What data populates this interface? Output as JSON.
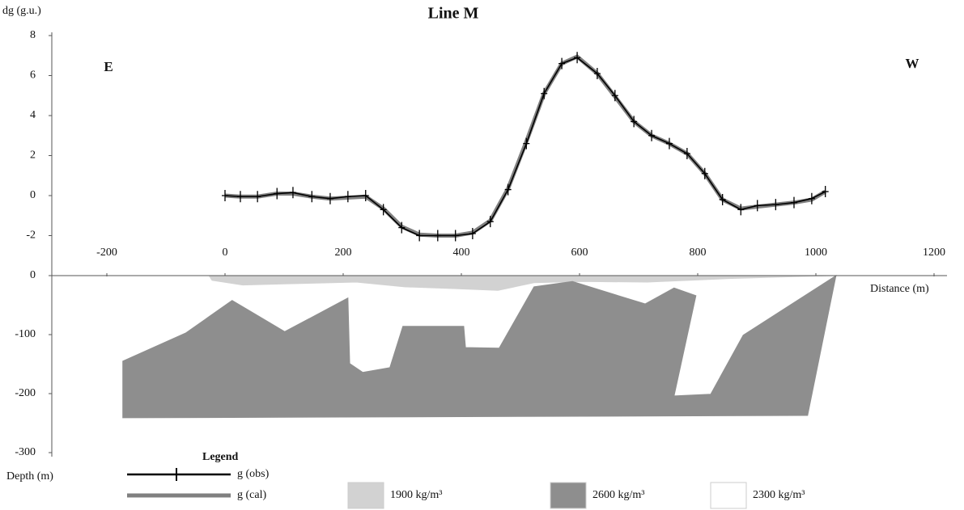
{
  "chart_data": [
    {
      "type": "line",
      "title": "Line M",
      "y_label": "dg (g.u.)",
      "x_label": "Distance (m)",
      "annotations": [
        "E",
        "W"
      ],
      "xlim": [
        -300,
        1200
      ],
      "xticks": [
        -200,
        0,
        200,
        400,
        600,
        800,
        1000,
        1200
      ],
      "ylim": [
        -2,
        8
      ],
      "yticks": [
        -2,
        0,
        2,
        4,
        6,
        8
      ],
      "legend_title": "Legend",
      "series": [
        {
          "name": "g (cal)",
          "color": "#808080",
          "x": [
            0,
            26,
            55,
            88,
            115,
            147,
            178,
            208,
            238,
            268,
            299,
            329,
            360,
            390,
            419,
            449,
            479,
            510,
            540,
            570,
            596,
            630,
            660,
            692,
            722,
            752,
            782,
            812,
            842,
            873,
            901,
            932,
            963,
            993,
            1016
          ],
          "values": [
            0,
            -0.05,
            -0.05,
            0.1,
            0.1,
            -0.05,
            -0.15,
            -0.1,
            -0.05,
            -0.65,
            -1.55,
            -1.95,
            -2.0,
            -2.0,
            -1.85,
            -1.25,
            0.35,
            2.7,
            5.1,
            6.6,
            6.95,
            6.1,
            4.95,
            3.7,
            3.0,
            2.6,
            2.1,
            1.1,
            -0.2,
            -0.65,
            -0.55,
            -0.45,
            -0.35,
            -0.2,
            0.2
          ]
        },
        {
          "name": "g (obs)",
          "color": "#000000",
          "x": [
            0,
            26,
            55,
            88,
            115,
            147,
            178,
            208,
            238,
            268,
            299,
            329,
            360,
            390,
            419,
            449,
            479,
            510,
            540,
            570,
            596,
            630,
            660,
            692,
            722,
            752,
            782,
            812,
            842,
            873,
            901,
            932,
            963,
            993,
            1016
          ],
          "values": [
            0,
            -0.05,
            -0.05,
            0.1,
            0.15,
            -0.05,
            -0.15,
            -0.05,
            0,
            -0.7,
            -1.6,
            -2.0,
            -2.0,
            -2.0,
            -1.9,
            -1.3,
            0.3,
            2.6,
            5.1,
            6.6,
            6.9,
            6.1,
            5.0,
            3.7,
            3.0,
            2.6,
            2.1,
            1.1,
            -0.2,
            -0.7,
            -0.5,
            -0.45,
            -0.35,
            -0.15,
            0.2
          ]
        }
      ]
    },
    {
      "type": "area",
      "y_label": "Depth (m)",
      "xlim": [
        -300,
        1200
      ],
      "ylim": [
        -300,
        0
      ],
      "yticks": [
        -300,
        -200,
        -100,
        0
      ],
      "series": [
        {
          "name": "1900 kg/m³",
          "color": "#d2d2d2",
          "x": [
            -27,
            1030,
            989,
            852,
            715,
            605,
            523,
            462,
            386,
            304,
            222,
            99,
            30,
            -22
          ],
          "values": [
            0,
            0,
            -1,
            -5,
            -11,
            -10,
            -12,
            -25,
            -22,
            -19,
            -11,
            -14,
            -16,
            -8
          ]
        },
        {
          "name": "2600 kg/m³",
          "color": "#8e8e8e",
          "x": [
            -173,
            -66,
            12,
            101,
            208,
            211,
            233,
            279,
            301,
            404,
            407,
            464,
            523,
            588,
            711,
            760,
            797,
            760,
            822,
            877,
            1034,
            986,
            -173
          ],
          "values": [
            -145,
            -97,
            -42,
            -95,
            -38,
            -149,
            -164,
            -156,
            -86,
            -86,
            -122,
            -123,
            -19,
            -10,
            -48,
            -21,
            -34,
            -204,
            -201,
            -101,
            0,
            -237,
            -241
          ]
        },
        {
          "name": "2300 kg/m³",
          "color": "#ffffff"
        }
      ]
    }
  ]
}
